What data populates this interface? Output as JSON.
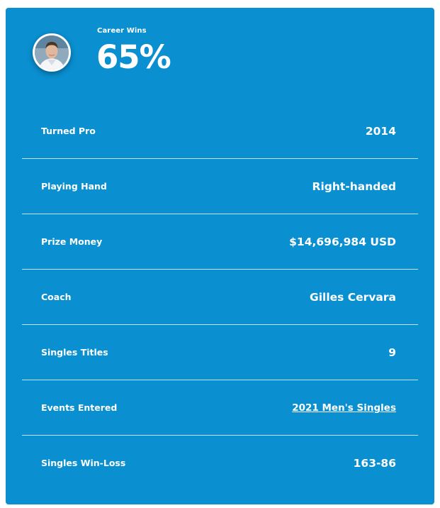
{
  "header": {
    "career_wins_label": "Career Wins",
    "career_wins_value": "65%"
  },
  "stats": [
    {
      "label": "Turned Pro",
      "value": "2014",
      "is_link": false
    },
    {
      "label": "Playing Hand",
      "value": "Right-handed",
      "is_link": false
    },
    {
      "label": "Prize Money",
      "value": "$14,696,984 USD",
      "is_link": false
    },
    {
      "label": "Coach",
      "value": "Gilles Cervara",
      "is_link": false
    },
    {
      "label": "Singles Titles",
      "value": "9",
      "is_link": false
    },
    {
      "label": "Events Entered",
      "value": "2021 Men's Singles",
      "is_link": true
    },
    {
      "label": "Singles Win-Loss",
      "value": "163-86",
      "is_link": false
    }
  ],
  "colors": {
    "card_background": "#0a8fd1",
    "text": "#ffffff"
  },
  "icons": {
    "avatar": "player-avatar"
  }
}
